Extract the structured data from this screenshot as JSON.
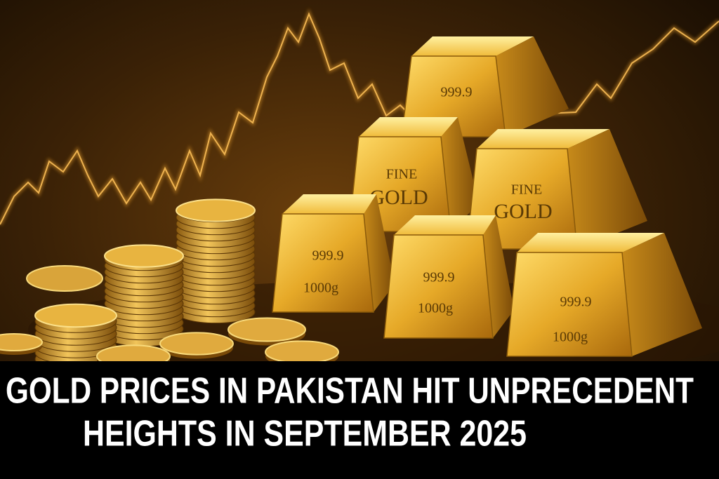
{
  "headline": {
    "lines": [
      "GOLD PRICES IN PAKISTAN HIT UNPRECEDENT",
      "HEIGHTS IN SEPTEMBER 2025"
    ]
  },
  "bars": [
    {
      "lines": [
        "999.9"
      ]
    },
    {
      "lines": [
        "FINE",
        "GOLD"
      ]
    },
    {
      "lines": [
        "FINE",
        "GOLD"
      ]
    },
    {
      "lines": [
        "999.9",
        "1000g"
      ]
    },
    {
      "lines": [
        "999.9",
        "1000g"
      ]
    },
    {
      "lines": [
        "999.9",
        "1000g"
      ]
    }
  ]
}
